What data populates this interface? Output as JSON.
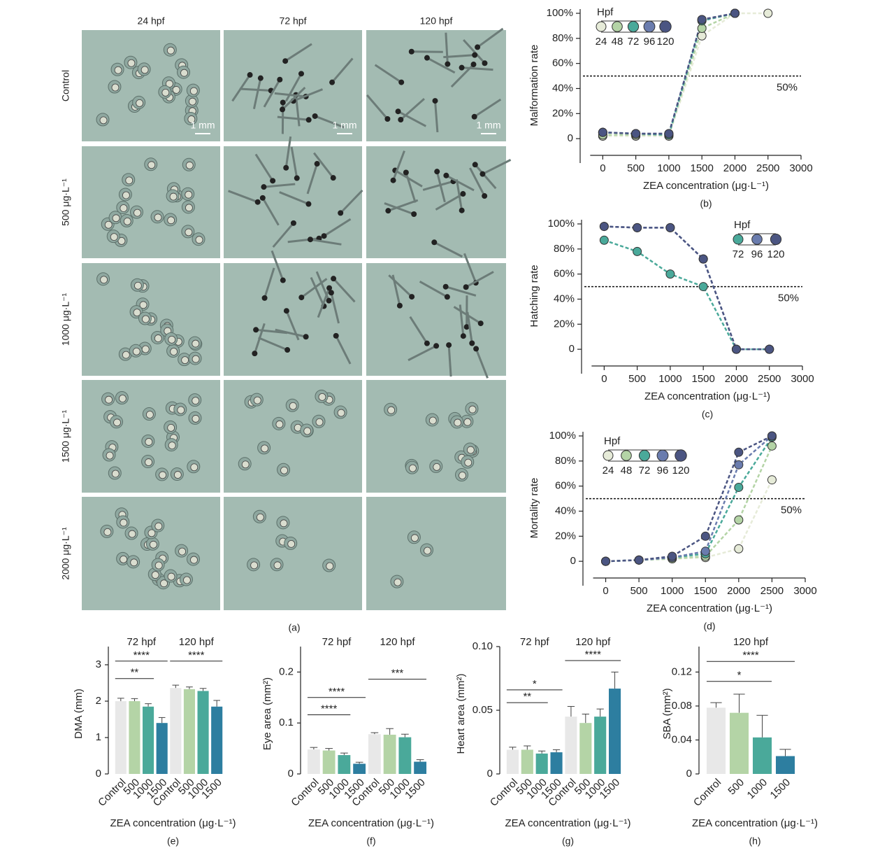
{
  "panel_a": {
    "columns": [
      "24 hpf",
      "72 hpf",
      "120 hpf"
    ],
    "rows": [
      "Control",
      "500 μg·L⁻¹",
      "1000 μg·L⁻¹",
      "1500 μg·L⁻¹",
      "2000 μg·L⁻¹"
    ],
    "scale_bar": "1 mm",
    "caption": "(a)"
  },
  "chart_data": [
    {
      "type": "line",
      "title": "(b)",
      "x_label": "ZEA concentration (μg·L⁻¹)",
      "y_label": "Malformation rate",
      "legend_title": "Hpf",
      "x": [
        0,
        500,
        1000,
        1500,
        2000,
        2500
      ],
      "xlim": [
        -300,
        3000
      ],
      "xticks": [
        0,
        500,
        1000,
        1500,
        2000,
        2500,
        3000
      ],
      "ylim": [
        -15,
        100
      ],
      "yticks": [
        0,
        {
          "value": 20,
          "label": "20%"
        },
        {
          "value": 40,
          "label": "40%"
        },
        {
          "value": 60,
          "label": "60%"
        },
        {
          "value": 80,
          "label": "80%"
        },
        {
          "value": 100,
          "label": "100%"
        }
      ],
      "reference": {
        "value": 50,
        "label": "50%"
      },
      "series": [
        {
          "name": "24",
          "color": "#e6ebd8",
          "values": [
            2,
            2,
            2,
            82,
            100,
            100
          ]
        },
        {
          "name": "48",
          "color": "#b4d4a6",
          "values": [
            3,
            3,
            3,
            88,
            100,
            null
          ]
        },
        {
          "name": "72",
          "color": "#4aa99a",
          "values": [
            5,
            4,
            3,
            94,
            100,
            null
          ]
        },
        {
          "name": "96",
          "color": "#6a7cae",
          "values": [
            5,
            4,
            4,
            95,
            100,
            null
          ]
        },
        {
          "name": "120",
          "color": "#4b5582",
          "values": [
            5,
            4,
            4,
            95,
            100,
            null
          ]
        }
      ]
    },
    {
      "type": "line",
      "title": "(c)",
      "x_label": "ZEA concentration (μg·L⁻¹)",
      "y_label": "Hatching rate",
      "legend_title": "Hpf",
      "x": [
        0,
        500,
        1000,
        1500,
        2000,
        2500
      ],
      "xlim": [
        -300,
        3000
      ],
      "xticks": [
        0,
        500,
        1000,
        1500,
        2000,
        2500,
        3000
      ],
      "ylim": [
        -15,
        100
      ],
      "yticks": [
        0,
        {
          "value": 20,
          "label": "20%"
        },
        {
          "value": 40,
          "label": "40%"
        },
        {
          "value": 60,
          "label": "60%"
        },
        {
          "value": 80,
          "label": "80%"
        },
        {
          "value": 100,
          "label": "100%"
        }
      ],
      "reference": {
        "value": 50,
        "label": "50%"
      },
      "series": [
        {
          "name": "72",
          "color": "#4aa99a",
          "values": [
            87,
            78,
            60,
            50,
            0,
            0
          ]
        },
        {
          "name": "96",
          "color": "#6a7cae",
          "values": [
            98,
            97,
            97,
            72,
            0,
            0
          ]
        },
        {
          "name": "120",
          "color": "#4b5582",
          "values": [
            98,
            97,
            97,
            72,
            0,
            0
          ]
        }
      ]
    },
    {
      "type": "line",
      "title": "(d)",
      "x_label": "ZEA concentration (μg·L⁻¹)",
      "y_label": "Mortality rate",
      "legend_title": "Hpf",
      "x": [
        0,
        500,
        1000,
        1500,
        2000,
        2500
      ],
      "xlim": [
        -300,
        3000
      ],
      "xticks": [
        0,
        500,
        1000,
        1500,
        2000,
        2500,
        3000
      ],
      "ylim": [
        -15,
        100
      ],
      "yticks": [
        0,
        {
          "value": 20,
          "label": "20%"
        },
        {
          "value": 40,
          "label": "40%"
        },
        {
          "value": 60,
          "label": "60%"
        },
        {
          "value": 80,
          "label": "80%"
        },
        {
          "value": 100,
          "label": "100%"
        }
      ],
      "reference": {
        "value": 50,
        "label": "50%"
      },
      "series": [
        {
          "name": "24",
          "color": "#e6ebd8",
          "values": [
            0,
            1,
            2,
            3,
            10,
            65
          ]
        },
        {
          "name": "48",
          "color": "#b4d4a6",
          "values": [
            0,
            1,
            2,
            4,
            33,
            92
          ]
        },
        {
          "name": "72",
          "color": "#4aa99a",
          "values": [
            0,
            1,
            3,
            6,
            59,
            99
          ]
        },
        {
          "name": "96",
          "color": "#6a7cae",
          "values": [
            0,
            1,
            3,
            8,
            77,
            100
          ]
        },
        {
          "name": "120",
          "color": "#4b5582",
          "values": [
            0,
            1,
            4,
            20,
            87,
            100
          ]
        }
      ]
    },
    {
      "type": "bar",
      "title": "(e)",
      "x_label": "ZEA concentration (μg·L⁻¹)",
      "y_label": "DMA (mm)",
      "categories": [
        "Control",
        "500",
        "1000",
        "1500"
      ],
      "colors": [
        "#e8e8e8",
        "#b4d4a6",
        "#4aa99a",
        "#2d7ea0"
      ],
      "ylim": [
        0,
        3.5
      ],
      "yticks": [
        0,
        1,
        2,
        3
      ],
      "groups": [
        {
          "name": "72 hpf",
          "values": [
            2.0,
            2.0,
            1.85,
            1.4
          ],
          "errors": [
            0.08,
            0.07,
            0.08,
            0.15
          ],
          "brackets": [
            {
              "label": "**",
              "from": 0,
              "to": 2,
              "y": 2.62
            },
            {
              "label": "****",
              "from": 0,
              "to": 3,
              "y": 3.1
            }
          ]
        },
        {
          "name": "120 hpf",
          "values": [
            2.36,
            2.33,
            2.28,
            1.85
          ],
          "errors": [
            0.08,
            0.06,
            0.07,
            0.17
          ],
          "brackets": [
            {
              "label": "****",
              "from": 0,
              "to": 3,
              "y": 3.1
            }
          ]
        }
      ]
    },
    {
      "type": "bar",
      "title": "(f)",
      "x_label": "ZEA concentration (μg·L⁻¹)",
      "y_label": "Eye area (mm²)",
      "categories": [
        "Control",
        "500",
        "1000",
        "1500"
      ],
      "colors": [
        "#e8e8e8",
        "#b4d4a6",
        "#4aa99a",
        "#2d7ea0"
      ],
      "ylim": [
        0,
        0.25
      ],
      "yticks": [
        0,
        0.1,
        0.2
      ],
      "groups": [
        {
          "name": "72 hpf",
          "values": [
            0.048,
            0.046,
            0.037,
            0.02
          ],
          "errors": [
            0.004,
            0.004,
            0.004,
            0.003
          ],
          "brackets": [
            {
              "label": "****",
              "from": 0,
              "to": 2,
              "y": 0.116
            },
            {
              "label": "****",
              "from": 0,
              "to": 3,
              "y": 0.15
            }
          ]
        },
        {
          "name": "120 hpf",
          "values": [
            0.078,
            0.077,
            0.072,
            0.024
          ],
          "errors": [
            0.003,
            0.012,
            0.006,
            0.004
          ],
          "brackets": [
            {
              "label": "***",
              "from": 0,
              "to": 3,
              "y": 0.186
            }
          ]
        }
      ]
    },
    {
      "type": "bar",
      "title": "(g)",
      "x_label": "ZEA concentration (μg·L⁻¹)",
      "y_label": "Heart area (mm²)",
      "categories": [
        "Control",
        "500",
        "1000",
        "1500"
      ],
      "colors": [
        "#e8e8e8",
        "#b4d4a6",
        "#4aa99a",
        "#2d7ea0"
      ],
      "ylim": [
        0,
        0.1
      ],
      "yticks": [
        0,
        0.05,
        {
          "value": 0.1,
          "label": "0.10"
        }
      ],
      "groups": [
        {
          "name": "72 hpf",
          "values": [
            0.019,
            0.019,
            0.016,
            0.017
          ],
          "errors": [
            0.002,
            0.003,
            0.002,
            0.002
          ],
          "brackets": [
            {
              "label": "**",
              "from": 0,
              "to": 2,
              "y": 0.056
            },
            {
              "label": "*",
              "from": 0,
              "to": 3,
              "y": 0.066
            }
          ]
        },
        {
          "name": "120 hpf",
          "values": [
            0.045,
            0.04,
            0.045,
            0.067
          ],
          "errors": [
            0.008,
            0.007,
            0.006,
            0.013
          ],
          "brackets": [
            {
              "label": "****",
              "from": 0,
              "to": 3,
              "y": 0.089
            }
          ]
        }
      ]
    },
    {
      "type": "bar",
      "title": "(h)",
      "x_label": "ZEA concentration (μg·L⁻¹)",
      "y_label": "SBA (mm²)",
      "categories": [
        "Control",
        "500",
        "1000",
        "1500"
      ],
      "colors": [
        "#e8e8e8",
        "#b4d4a6",
        "#4aa99a",
        "#2d7ea0"
      ],
      "ylim": [
        0,
        0.15
      ],
      "yticks": [
        0,
        0.04,
        0.08,
        0.12
      ],
      "groups": [
        {
          "name": "120 hpf",
          "values": [
            0.078,
            0.072,
            0.043,
            0.021
          ],
          "errors": [
            0.006,
            0.022,
            0.026,
            0.008
          ],
          "brackets": [
            {
              "label": "*",
              "from": 0,
              "to": 2,
              "y": 0.109
            },
            {
              "label": "****",
              "from": 0,
              "to": 3,
              "y": 0.1325
            }
          ]
        }
      ]
    }
  ]
}
